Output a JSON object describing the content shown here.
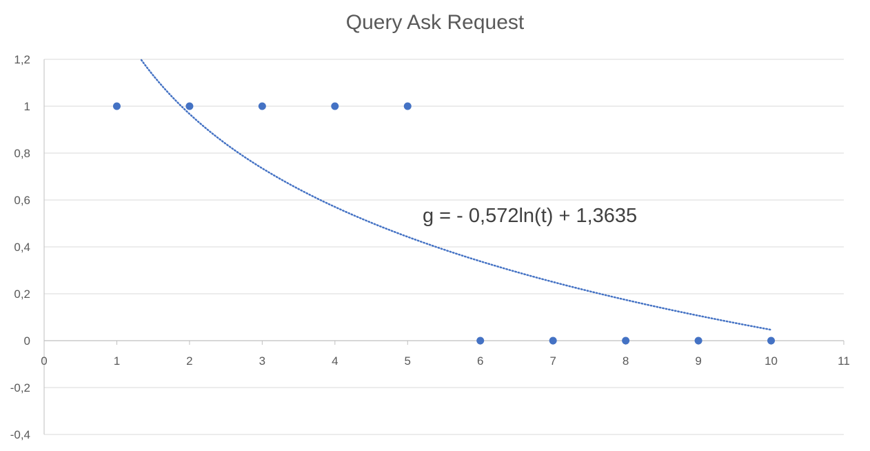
{
  "chart_data": {
    "type": "scatter",
    "title": "Query Ask Request",
    "xlabel": "",
    "ylabel": "",
    "xlim": [
      0,
      11
    ],
    "ylim": [
      -0.4,
      1.2
    ],
    "x_ticks": [
      "0",
      "1",
      "2",
      "3",
      "4",
      "5",
      "6",
      "7",
      "8",
      "9",
      "10",
      "11"
    ],
    "y_ticks": [
      "1,2",
      "1",
      "0,8",
      "0,6",
      "0,4",
      "0,2",
      "0",
      "-0,2",
      "-0,4"
    ],
    "grid": true,
    "legend": "none",
    "series": [
      {
        "x": [
          1,
          2,
          3,
          4,
          5,
          6,
          7,
          8,
          9,
          10
        ],
        "y": [
          1,
          1,
          1,
          1,
          1,
          0,
          0,
          0,
          0,
          0
        ],
        "color": "#4472C4"
      }
    ],
    "trendline": {
      "type": "logarithmic",
      "a": -0.572,
      "b": 1.3635,
      "x_range": [
        1,
        10
      ],
      "color": "#4472C4",
      "style": "dotted",
      "equation_label": "g = - 0,572ln(t) + 1,3635"
    }
  }
}
